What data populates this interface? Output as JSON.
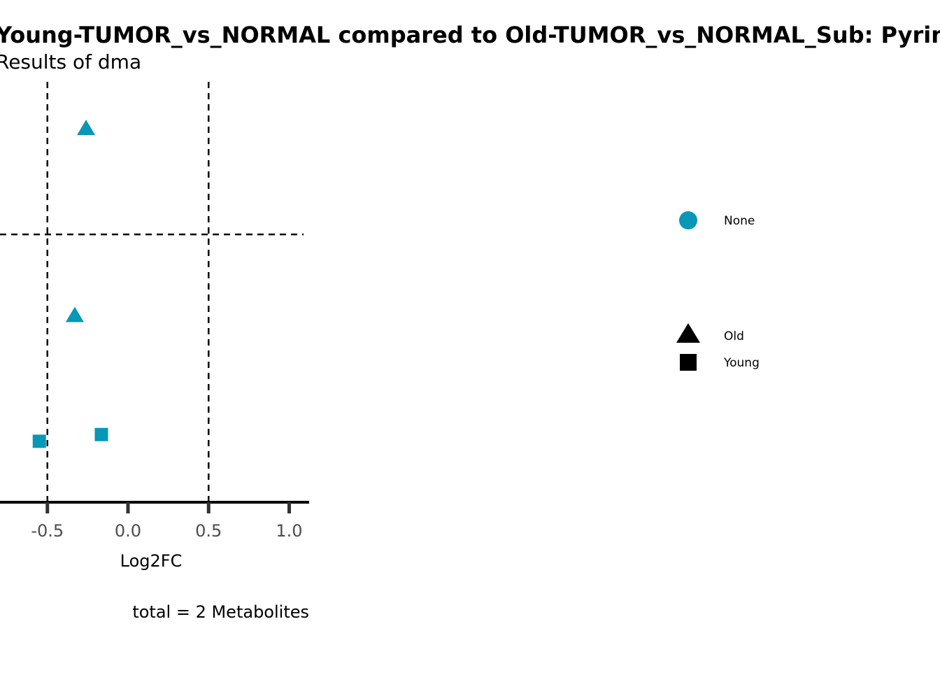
{
  "chart_data": {
    "type": "scatter",
    "title": "Young-TUMOR_vs_NORMAL compared to Old-TUMOR_vs_NORMAL_Sub: Pyrim",
    "subtitle": "Results of dma",
    "xlabel": "Log2FC",
    "caption": "total = 2 Metabolites",
    "x_ticks": [
      "-0.5",
      "0.0",
      "0.5",
      "1.0"
    ],
    "x_tick_values": [
      -0.5,
      0,
      0.5,
      1.0
    ],
    "xlim": [
      -0.8,
      1.12
    ],
    "ylim": [
      0,
      1
    ],
    "threshold_lines": {
      "x": [
        -0.5,
        0.5
      ],
      "y": 0.637
    },
    "points": [
      {
        "x": -0.26,
        "y": 0.89,
        "group": "Old",
        "shape": "triangle",
        "color": "#0797B7"
      },
      {
        "x": -0.33,
        "y": 0.445,
        "group": "Old",
        "shape": "triangle",
        "color": "#0797B7"
      },
      {
        "x": -0.55,
        "y": 0.145,
        "group": "Young",
        "shape": "square",
        "color": "#0797B7"
      },
      {
        "x": -0.165,
        "y": 0.161,
        "group": "Young",
        "shape": "square",
        "color": "#0797B7"
      }
    ],
    "legend": {
      "position": "right",
      "color_items": [
        {
          "label": "None",
          "color": "#0797B7",
          "shape": "circle"
        }
      ],
      "shape_items": [
        {
          "label": "Old",
          "shape": "triangle",
          "color": "#000000"
        },
        {
          "label": "Young",
          "shape": "square",
          "color": "#000000"
        }
      ]
    }
  }
}
